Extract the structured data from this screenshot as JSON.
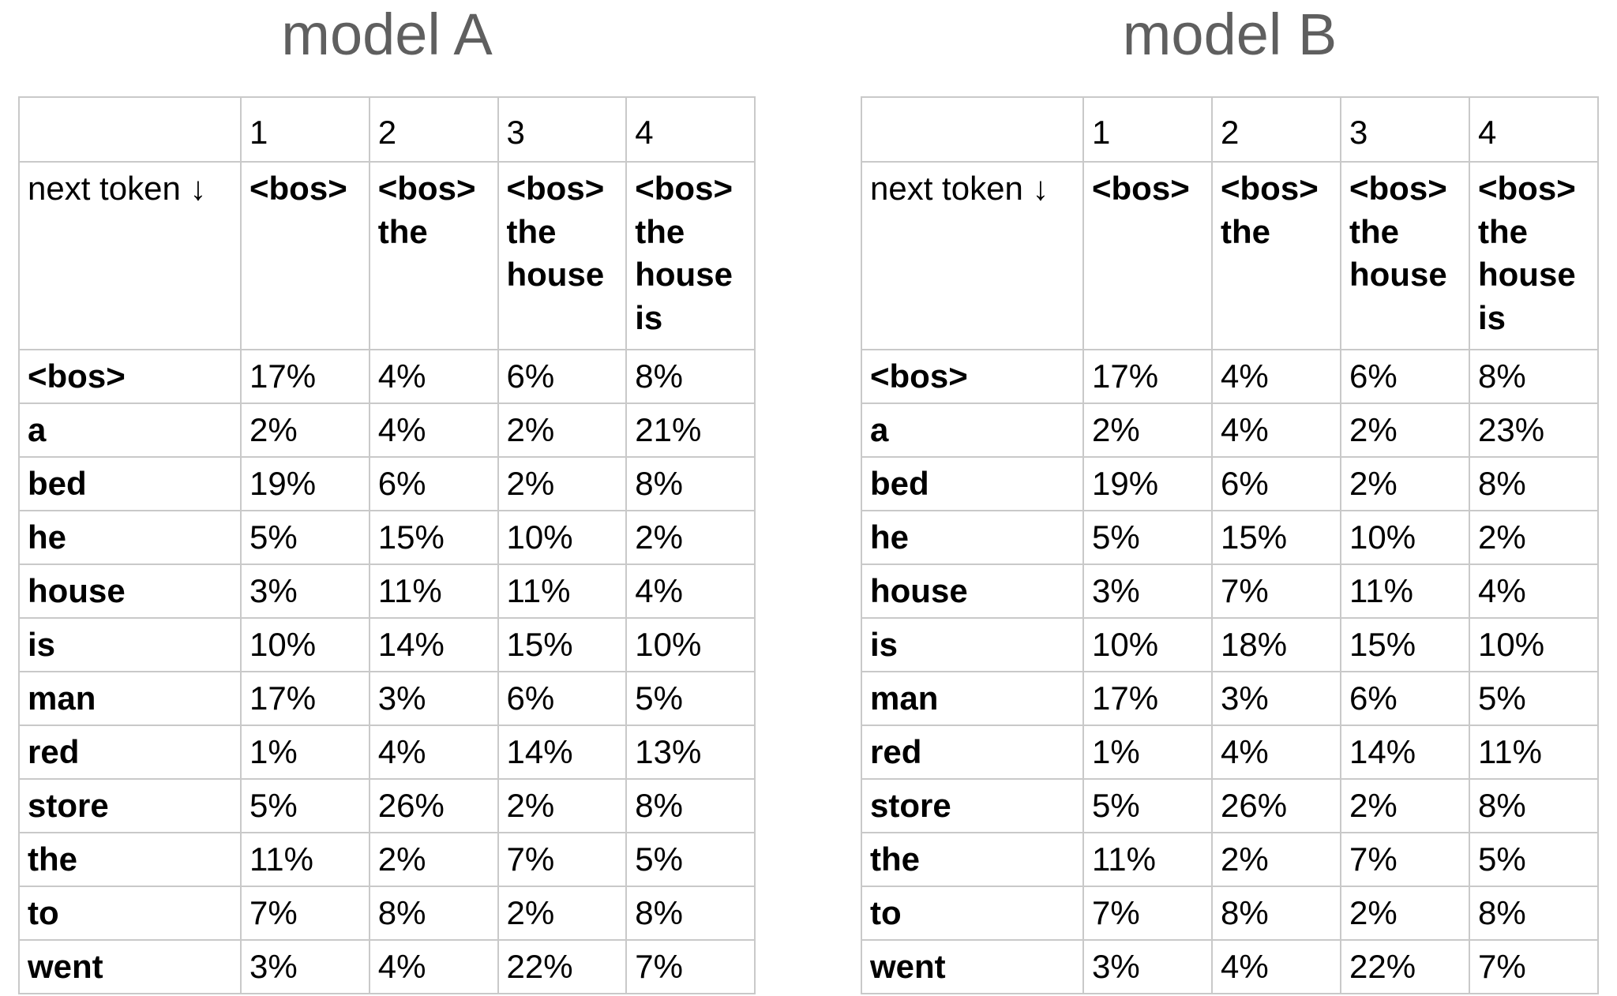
{
  "colors": {
    "background": "#ffffff",
    "title_text": "#5f5f5f",
    "table_border": "#c9c9c9",
    "cell_text": "#000000"
  },
  "tables": [
    {
      "title": "model A",
      "corner_header": "next token ↓",
      "position_headers": [
        "1",
        "2",
        "3",
        "4"
      ],
      "context_headers": [
        "<bos>",
        "<bos> the",
        "<bos> the house",
        "<bos> the house is"
      ],
      "rows": [
        {
          "token": "<bos>",
          "values": [
            "17%",
            "4%",
            "6%",
            "8%"
          ]
        },
        {
          "token": "a",
          "values": [
            "2%",
            "4%",
            "2%",
            "21%"
          ]
        },
        {
          "token": "bed",
          "values": [
            "19%",
            "6%",
            "2%",
            "8%"
          ]
        },
        {
          "token": "he",
          "values": [
            "5%",
            "15%",
            "10%",
            "2%"
          ]
        },
        {
          "token": "house",
          "values": [
            "3%",
            "11%",
            "11%",
            "4%"
          ]
        },
        {
          "token": "is",
          "values": [
            "10%",
            "14%",
            "15%",
            "10%"
          ]
        },
        {
          "token": "man",
          "values": [
            "17%",
            "3%",
            "6%",
            "5%"
          ]
        },
        {
          "token": "red",
          "values": [
            "1%",
            "4%",
            "14%",
            "13%"
          ]
        },
        {
          "token": "store",
          "values": [
            "5%",
            "26%",
            "2%",
            "8%"
          ]
        },
        {
          "token": "the",
          "values": [
            "11%",
            "2%",
            "7%",
            "5%"
          ]
        },
        {
          "token": "to",
          "values": [
            "7%",
            "8%",
            "2%",
            "8%"
          ]
        },
        {
          "token": "went",
          "values": [
            "3%",
            "4%",
            "22%",
            "7%"
          ]
        }
      ]
    },
    {
      "title": "model B",
      "corner_header": "next token ↓",
      "position_headers": [
        "1",
        "2",
        "3",
        "4"
      ],
      "context_headers": [
        "<bos>",
        "<bos> the",
        "<bos> the house",
        "<bos> the house is"
      ],
      "rows": [
        {
          "token": "<bos>",
          "values": [
            "17%",
            "4%",
            "6%",
            "8%"
          ]
        },
        {
          "token": "a",
          "values": [
            "2%",
            "4%",
            "2%",
            "23%"
          ]
        },
        {
          "token": "bed",
          "values": [
            "19%",
            "6%",
            "2%",
            "8%"
          ]
        },
        {
          "token": "he",
          "values": [
            "5%",
            "15%",
            "10%",
            "2%"
          ]
        },
        {
          "token": "house",
          "values": [
            "3%",
            "7%",
            "11%",
            "4%"
          ]
        },
        {
          "token": "is",
          "values": [
            "10%",
            "18%",
            "15%",
            "10%"
          ]
        },
        {
          "token": "man",
          "values": [
            "17%",
            "3%",
            "6%",
            "5%"
          ]
        },
        {
          "token": "red",
          "values": [
            "1%",
            "4%",
            "14%",
            "11%"
          ]
        },
        {
          "token": "store",
          "values": [
            "5%",
            "26%",
            "2%",
            "8%"
          ]
        },
        {
          "token": "the",
          "values": [
            "11%",
            "2%",
            "7%",
            "5%"
          ]
        },
        {
          "token": "to",
          "values": [
            "7%",
            "8%",
            "2%",
            "8%"
          ]
        },
        {
          "token": "went",
          "values": [
            "3%",
            "4%",
            "22%",
            "7%"
          ]
        }
      ]
    }
  ]
}
